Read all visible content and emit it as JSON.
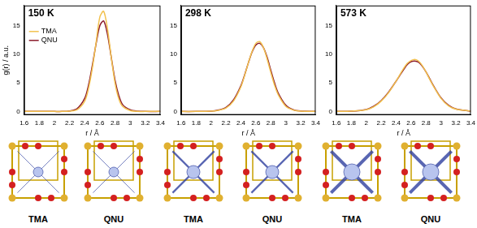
{
  "chart_data": [
    {
      "type": "line",
      "title": "150 K",
      "x_label": "r / Å",
      "y_label": "g(r) / a.u.",
      "x": [
        1.6,
        1.8,
        2.0,
        2.1,
        2.2,
        2.3,
        2.4,
        2.45,
        2.5,
        2.55,
        2.6,
        2.65,
        2.7,
        2.75,
        2.8,
        2.85,
        2.9,
        3.0,
        3.1,
        3.2,
        3.4
      ],
      "series": [
        {
          "name": "TMA",
          "color": "#f2c14e",
          "values": [
            0,
            0,
            0,
            0,
            0.05,
            0.3,
            1.8,
            4,
            7.5,
            12,
            16.5,
            17.5,
            14.5,
            9.5,
            5,
            2.2,
            0.9,
            0.15,
            0,
            0,
            0
          ]
        },
        {
          "name": "QNU",
          "color": "#8b1a2b",
          "values": [
            0,
            0,
            0,
            0,
            0.1,
            0.5,
            2.3,
            4.6,
            8,
            11.8,
            15,
            15.8,
            13.5,
            9.5,
            5.5,
            2.8,
            1.2,
            0.3,
            0.05,
            0,
            0
          ]
        }
      ],
      "xlim": [
        1.6,
        3.4
      ],
      "xticks": [
        1.6,
        1.8,
        2,
        2.2,
        2.4,
        2.6,
        2.8,
        3,
        3.2,
        3.4
      ],
      "ylim": [
        -0.6,
        18.5
      ],
      "yticks": [
        0,
        5,
        10,
        15
      ],
      "grid": false,
      "legend": "upper left"
    },
    {
      "type": "line",
      "title": "298 K",
      "x_label": "r / Å",
      "x": [
        1.6,
        1.8,
        2.0,
        2.1,
        2.2,
        2.3,
        2.4,
        2.45,
        2.5,
        2.55,
        2.6,
        2.65,
        2.7,
        2.75,
        2.8,
        2.85,
        2.9,
        3.0,
        3.1,
        3.2,
        3.4
      ],
      "series": [
        {
          "name": "TMA",
          "color": "#f2c14e",
          "values": [
            0,
            0,
            0.05,
            0.2,
            0.6,
            1.8,
            4.3,
            6.3,
            8.5,
            10.5,
            11.9,
            12.2,
            11.2,
            9.2,
            6.8,
            4.6,
            2.9,
            0.9,
            0.25,
            0.05,
            0
          ]
        },
        {
          "name": "QNU",
          "color": "#8b1a2b",
          "values": [
            0,
            0,
            0.05,
            0.25,
            0.7,
            2.0,
            4.5,
            6.4,
            8.5,
            10.4,
            11.6,
            11.9,
            11.2,
            9.5,
            7.2,
            5,
            3.2,
            1.1,
            0.3,
            0.08,
            0
          ]
        }
      ],
      "xlim": [
        1.6,
        3.4
      ],
      "xticks": [
        1.6,
        1.8,
        2,
        2.2,
        2.4,
        2.6,
        2.8,
        3,
        3.2,
        3.4
      ],
      "ylim": [
        -0.6,
        18.5
      ],
      "yticks": [
        0,
        5,
        10,
        15
      ],
      "grid": false
    },
    {
      "type": "line",
      "title": "573 K",
      "x_label": "r / Å",
      "x": [
        1.6,
        1.8,
        2.0,
        2.1,
        2.2,
        2.3,
        2.4,
        2.45,
        2.5,
        2.55,
        2.6,
        2.65,
        2.7,
        2.75,
        2.8,
        2.85,
        2.9,
        3.0,
        3.1,
        3.2,
        3.4
      ],
      "series": [
        {
          "name": "TMA",
          "color": "#f2c14e",
          "values": [
            0,
            0.05,
            0.3,
            0.8,
            1.8,
            3.3,
            5.3,
            6.4,
            7.5,
            8.4,
            8.9,
            9.1,
            8.8,
            8.0,
            6.9,
            5.6,
            4.4,
            2.3,
            1.0,
            0.4,
            0.05
          ]
        },
        {
          "name": "QNU",
          "color": "#8b1a2b",
          "values": [
            0,
            0.05,
            0.35,
            0.9,
            1.9,
            3.4,
            5.3,
            6.3,
            7.3,
            8.2,
            8.7,
            8.8,
            8.6,
            7.9,
            6.9,
            5.7,
            4.5,
            2.4,
            1.1,
            0.45,
            0.05
          ]
        }
      ],
      "xlim": [
        1.6,
        3.4
      ],
      "xticks": [
        1.6,
        1.8,
        2,
        2.2,
        2.4,
        2.6,
        2.8,
        3,
        3.2,
        3.4
      ],
      "ylim": [
        -0.6,
        18.5
      ],
      "yticks": [
        0,
        5,
        10,
        15
      ],
      "grid": false
    }
  ],
  "structure_labels": [
    "TMA",
    "QNU",
    "TMA",
    "QNU",
    "TMA",
    "QNU"
  ]
}
